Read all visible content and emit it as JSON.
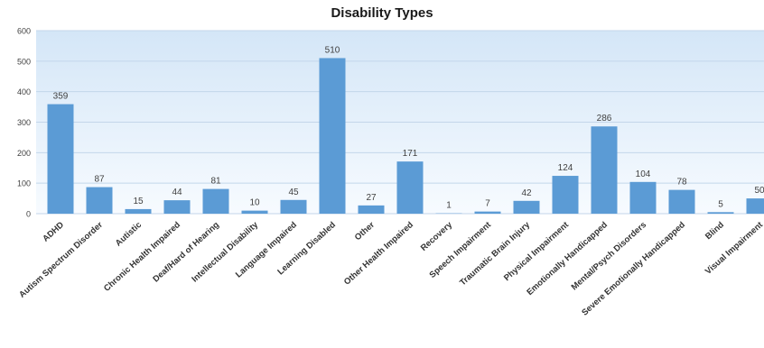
{
  "colors": {
    "bar": "#5b9bd5",
    "plot_bg_top": "#d4e6f7",
    "plot_bg_bottom": "#f7fbff",
    "gridline": "#c3d6ea",
    "text": "#404040",
    "label": "#333333"
  },
  "chart_data": {
    "type": "bar",
    "title": "Disability Types",
    "xlabel": "",
    "ylabel": "",
    "ylim": [
      0,
      600
    ],
    "yticks": [
      0,
      100,
      200,
      300,
      400,
      500,
      600
    ],
    "grid": true,
    "data_labels": true,
    "categories": [
      "ADHD",
      "Autism Spectrum Disorder",
      "Autistic",
      "Chronic Health Impaired",
      "Deaf/Hard of Hearing",
      "Intellectual Disability",
      "Language Impaired",
      "Learning Disabled",
      "Other",
      "Other Health Impaired",
      "Recovery",
      "Speech Impairment",
      "Traumatic Brain Injury",
      "Physical Impairment",
      "Emotionally Handicapped",
      "Mental/Psych Disorders",
      "Severe Emotionally Handicapped",
      "Blind",
      "Visual Impairment"
    ],
    "values": [
      359,
      87,
      15,
      44,
      81,
      10,
      45,
      510,
      27,
      171,
      1,
      7,
      42,
      124,
      286,
      104,
      78,
      5,
      50
    ]
  }
}
